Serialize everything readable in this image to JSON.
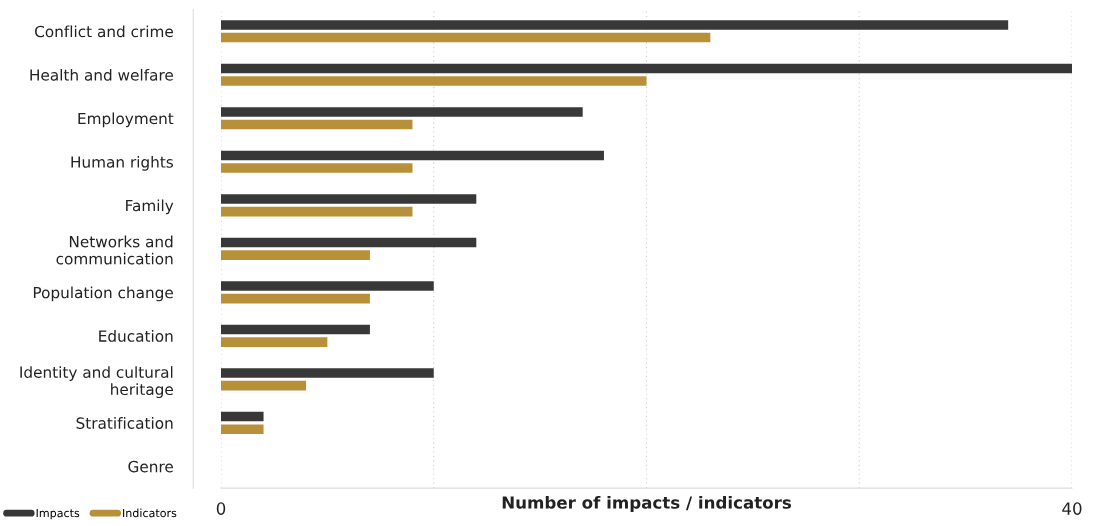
{
  "chart_data": {
    "type": "bar",
    "orientation": "horizontal",
    "xlabel": "Number of impacts / indicators",
    "categories": [
      "Conflict and crime",
      "Health and welfare",
      "Employment",
      "Human rights",
      "Family",
      "Networks and\ncommunication",
      "Population change",
      "Education",
      "Identity and cultural\nheritage",
      "Stratification",
      "Genre"
    ],
    "series": [
      {
        "name": "Impacts",
        "color": "#383838",
        "values": [
          37,
          40,
          17,
          18,
          12,
          12,
          10,
          7,
          10,
          2,
          0
        ]
      },
      {
        "name": "Indicators",
        "color": "#b8903a",
        "values": [
          23,
          20,
          9,
          9,
          9,
          7,
          7,
          5,
          4,
          2,
          0
        ]
      }
    ],
    "xlim": [
      0,
      40
    ],
    "xticks": [
      0,
      {
        "value": 10,
        "label": null
      },
      {
        "value": 20,
        "label": null
      },
      {
        "value": 30,
        "label": null
      },
      40
    ],
    "grid": "x",
    "legend": "bottom left"
  }
}
